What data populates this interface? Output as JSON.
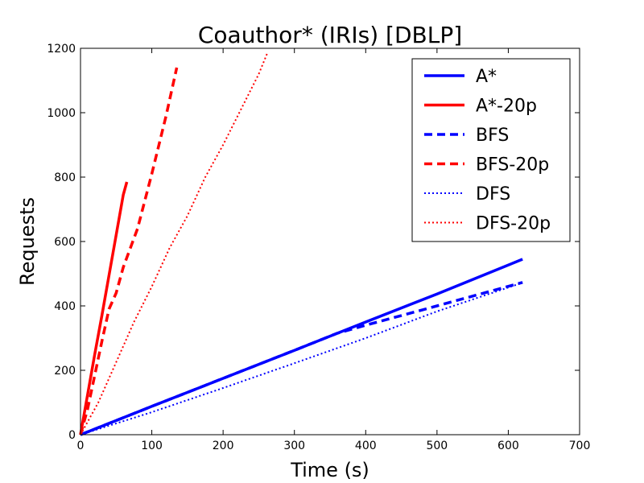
{
  "chart_data": {
    "type": "line",
    "title": "Coauthor* (IRIs) [DBLP]",
    "xlabel": "Time (s)",
    "ylabel": "Requests",
    "xlim": [
      0,
      700
    ],
    "ylim": [
      0,
      1200
    ],
    "xticks": [
      0,
      100,
      200,
      300,
      400,
      500,
      600,
      700
    ],
    "yticks": [
      0,
      200,
      400,
      600,
      800,
      1000,
      1200
    ],
    "xtick_labels": [
      "0",
      "100",
      "200",
      "300",
      "400",
      "500",
      "600",
      "700"
    ],
    "ytick_labels": [
      "0",
      "200",
      "400",
      "600",
      "800",
      "1000",
      "1200"
    ],
    "grid": false,
    "legend_position": "top-right",
    "series": [
      {
        "name": "A*",
        "color": "#0000ff",
        "style": "solid",
        "points": [
          [
            0,
            0
          ],
          [
            100,
            88
          ],
          [
            200,
            175
          ],
          [
            300,
            262
          ],
          [
            400,
            350
          ],
          [
            500,
            437
          ],
          [
            620,
            545
          ]
        ]
      },
      {
        "name": "A*-20p",
        "color": "#ff0000",
        "style": "solid",
        "points": [
          [
            0,
            0
          ],
          [
            10,
            125
          ],
          [
            20,
            250
          ],
          [
            30,
            370
          ],
          [
            40,
            495
          ],
          [
            50,
            620
          ],
          [
            60,
            745
          ],
          [
            65,
            785
          ]
        ]
      },
      {
        "name": "BFS",
        "color": "#0000ff",
        "style": "dashed",
        "points": [
          [
            0,
            0
          ],
          [
            100,
            88
          ],
          [
            200,
            175
          ],
          [
            300,
            262
          ],
          [
            360,
            315
          ],
          [
            400,
            340
          ],
          [
            500,
            400
          ],
          [
            620,
            473
          ]
        ]
      },
      {
        "name": "BFS-20p",
        "color": "#ff0000",
        "style": "dashed",
        "points": [
          [
            0,
            0
          ],
          [
            10,
            80
          ],
          [
            20,
            185
          ],
          [
            30,
            290
          ],
          [
            40,
            390
          ],
          [
            50,
            440
          ],
          [
            60,
            520
          ],
          [
            80,
            640
          ],
          [
            100,
            810
          ],
          [
            120,
            990
          ],
          [
            135,
            1140
          ]
        ]
      },
      {
        "name": "DFS",
        "color": "#0000ff",
        "style": "dotted",
        "points": [
          [
            0,
            0
          ],
          [
            100,
            70
          ],
          [
            200,
            145
          ],
          [
            300,
            222
          ],
          [
            400,
            300
          ],
          [
            500,
            383
          ],
          [
            620,
            472
          ]
        ]
      },
      {
        "name": "DFS-20p",
        "color": "#ff0000",
        "style": "dotted",
        "points": [
          [
            0,
            0
          ],
          [
            25,
            100
          ],
          [
            50,
            225
          ],
          [
            75,
            350
          ],
          [
            100,
            460
          ],
          [
            125,
            580
          ],
          [
            150,
            680
          ],
          [
            175,
            800
          ],
          [
            200,
            900
          ],
          [
            225,
            1010
          ],
          [
            250,
            1120
          ],
          [
            262,
            1185
          ]
        ]
      }
    ]
  }
}
